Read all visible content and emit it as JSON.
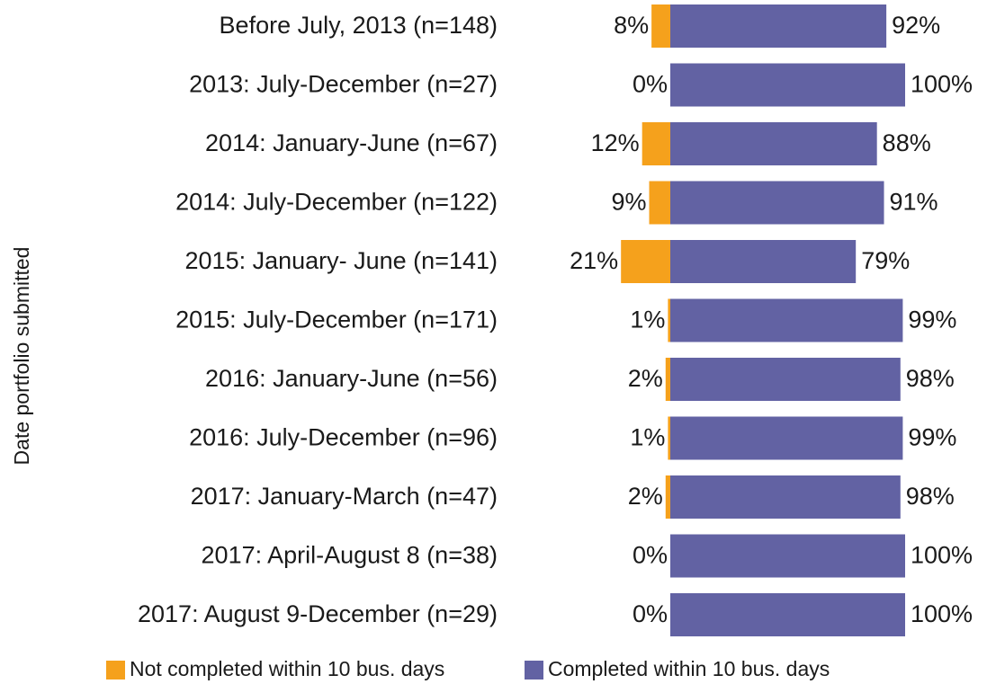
{
  "chart_data": {
    "type": "bar",
    "y_label": "Date portfolio submitted",
    "categories": [
      "Before July, 2013 (n=148)",
      "2013: July-December (n=27)",
      "2014: January-June (n=67)",
      "2014: July-December (n=122)",
      "2015: January- June (n=141)",
      "2015: July-December (n=171)",
      "2016: January-June (n=56)",
      "2016: July-December (n=96)",
      "2017: January-March (n=47)",
      "2017: April-August 8 (n=38)",
      "2017: August 9-December (n=29)"
    ],
    "series": [
      {
        "name": "Not completed within 10 bus. days",
        "color": "#f5a11c",
        "values": [
          8,
          0,
          12,
          9,
          21,
          1,
          2,
          1,
          2,
          0,
          0
        ],
        "value_labels": [
          "8%",
          "0%",
          "12%",
          "9%",
          "21%",
          "1%",
          "2%",
          "1%",
          "2%",
          "0%",
          "0%"
        ]
      },
      {
        "name": "Completed within 10 bus. days",
        "color": "#6262a3",
        "values": [
          92,
          100,
          88,
          91,
          79,
          99,
          98,
          99,
          98,
          100,
          100
        ],
        "value_labels": [
          "92%",
          "100%",
          "88%",
          "91%",
          "79%",
          "99%",
          "98%",
          "99%",
          "98%",
          "100%",
          "100%"
        ]
      }
    ]
  }
}
